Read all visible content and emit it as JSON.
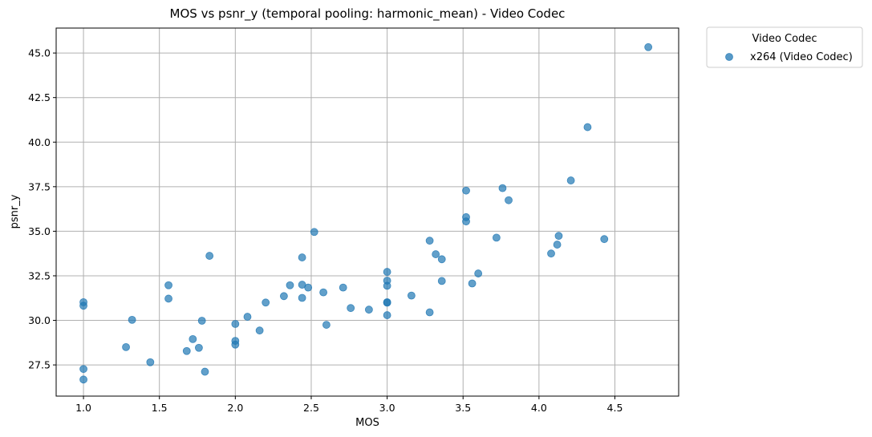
{
  "chart_data": {
    "type": "scatter",
    "title": "MOS vs psnr_y (temporal pooling: harmonic_mean) - Video Codec",
    "xlabel": "MOS",
    "ylabel": "psnr_y",
    "xlim": [
      0.82,
      4.92
    ],
    "ylim": [
      25.75,
      46.4
    ],
    "xticks": [
      "1.0",
      "1.5",
      "2.0",
      "2.5",
      "3.0",
      "3.5",
      "4.0",
      "4.5"
    ],
    "yticks": [
      "27.5",
      "30.0",
      "32.5",
      "35.0",
      "37.5",
      "40.0",
      "42.5",
      "45.0"
    ],
    "grid": true,
    "legend": {
      "title": "Video Codec",
      "placement": "outside-top-right"
    },
    "colors": {
      "point": "#1f77b4",
      "grid": "#b0b0b0"
    },
    "series": [
      {
        "name": "x264 (Video Codec)",
        "x": [
          1.0,
          1.0,
          1.0,
          1.0,
          1.28,
          1.32,
          1.44,
          1.56,
          1.56,
          1.68,
          1.72,
          1.76,
          1.78,
          1.8,
          1.83,
          2.0,
          2.0,
          2.0,
          2.08,
          2.16,
          2.2,
          2.32,
          2.36,
          2.44,
          2.44,
          2.44,
          2.48,
          2.52,
          2.58,
          2.6,
          2.71,
          2.76,
          2.88,
          3.0,
          3.0,
          3.0,
          3.0,
          3.0,
          3.0,
          3.16,
          3.28,
          3.28,
          3.32,
          3.36,
          3.36,
          3.52,
          3.52,
          3.52,
          3.56,
          3.6,
          3.72,
          3.76,
          3.8,
          4.08,
          4.12,
          4.13,
          4.21,
          4.32,
          4.43,
          4.72
        ],
        "y": [
          31.02,
          30.82,
          27.27,
          26.68,
          28.5,
          30.03,
          27.65,
          31.97,
          31.22,
          28.28,
          28.95,
          28.46,
          29.98,
          27.12,
          33.62,
          29.8,
          28.85,
          28.64,
          30.2,
          29.43,
          31.0,
          31.36,
          31.97,
          33.53,
          32.0,
          31.26,
          31.84,
          34.96,
          31.57,
          29.75,
          31.84,
          30.69,
          30.6,
          32.72,
          32.23,
          31.94,
          31.02,
          30.99,
          30.29,
          31.39,
          34.47,
          30.45,
          33.71,
          33.43,
          32.21,
          37.28,
          35.79,
          35.55,
          32.07,
          32.63,
          34.64,
          37.42,
          36.74,
          33.75,
          34.25,
          34.74,
          37.85,
          40.84,
          34.56,
          45.33
        ]
      }
    ]
  }
}
